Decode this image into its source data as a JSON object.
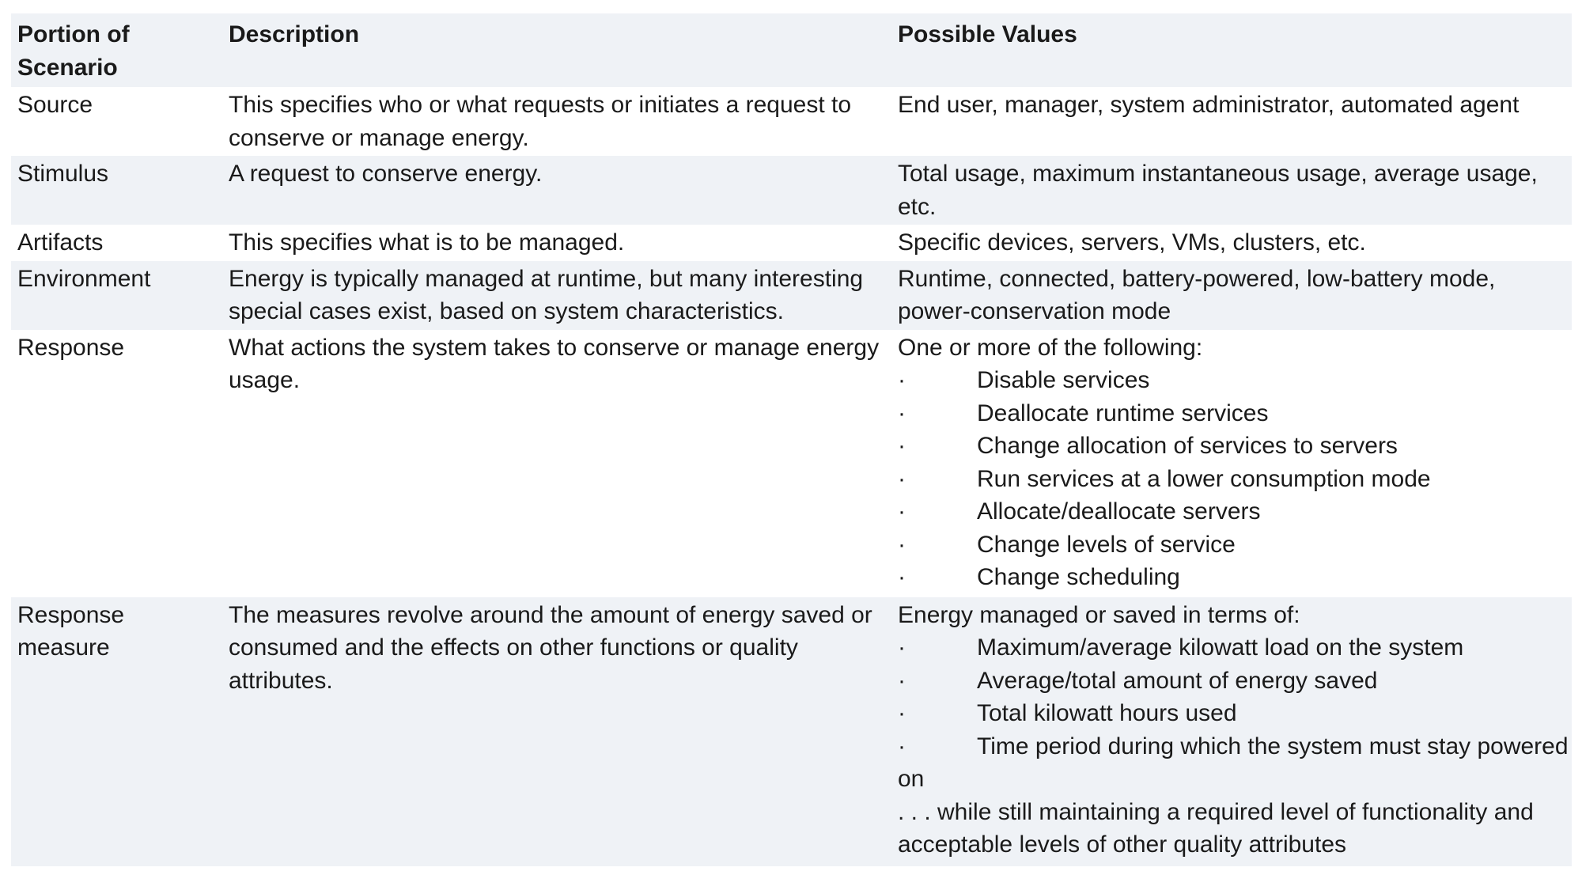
{
  "table": {
    "headers": [
      "Portion of Scenario",
      "Description",
      "Possible Values"
    ],
    "rows": [
      {
        "portion": "Source",
        "description": "This specifies who or what requests or initiates a request to conserve or manage energy.",
        "values_intro": "End user, manager, system administrator, automated agent"
      },
      {
        "portion": "Stimulus",
        "description": "A request to conserve energy.",
        "values_intro": "Total usage, maximum instantaneous usage, average usage, etc."
      },
      {
        "portion": "Artifacts",
        "description": "This specifies what is to be managed.",
        "values_intro": "Specific devices, servers, VMs, clusters, etc."
      },
      {
        "portion": "Environment",
        "description": "Energy is typically managed at runtime, but many interesting special cases exist, based on system characteristics.",
        "values_intro": "Runtime, connected, battery-powered, low-battery mode, power-conservation mode"
      },
      {
        "portion": "Response",
        "description": "What actions the system takes to conserve or manage energy usage.",
        "values_intro": "One or more of the following:",
        "bullets": [
          "Disable services",
          "Deallocate runtime services",
          "Change allocation of services to servers",
          "Run services at a lower consumption mode",
          "Allocate/deallocate servers",
          "Change levels of service",
          "Change scheduling"
        ]
      },
      {
        "portion": "Response measure",
        "description": "The measures revolve around the amount of energy saved or consumed and the effects on other functions or quality attributes.",
        "values_intro": "Energy managed or saved in terms of:",
        "bullets": [
          "Maximum/average kilowatt load on the system",
          "Average/total amount of energy saved",
          "Total kilowatt hours used",
          "Time period during which the system must stay powered on"
        ],
        "values_outro": ". . . while still maintaining a required level of functionality and acceptable levels of other quality attributes"
      }
    ],
    "bullet_char": "·"
  }
}
